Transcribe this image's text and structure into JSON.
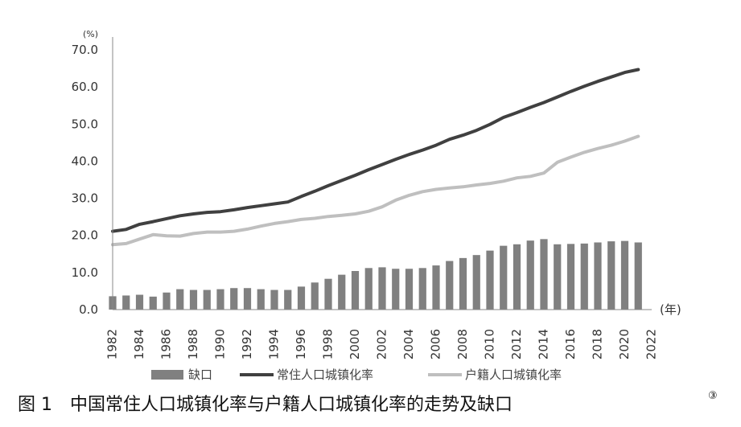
{
  "chart_data": {
    "type": "bar+line",
    "y_unit": "(%)",
    "x_unit": "(年)",
    "ylim": [
      0,
      70
    ],
    "yticks": [
      0,
      10,
      20,
      30,
      40,
      50,
      60,
      70
    ],
    "ytick_labels": [
      "0.0",
      "10.0",
      "20.0",
      "30.0",
      "40.0",
      "50.0",
      "60.0",
      "70.0"
    ],
    "xlim": [
      1982,
      2022
    ],
    "x_labels": [
      1982,
      1984,
      1986,
      1988,
      1990,
      1992,
      1994,
      1996,
      1998,
      2000,
      2002,
      2004,
      2006,
      2008,
      2010,
      2012,
      2014,
      2016,
      2018,
      2020,
      2022
    ],
    "x": [
      1982,
      1983,
      1984,
      1985,
      1986,
      1987,
      1988,
      1989,
      1990,
      1991,
      1992,
      1993,
      1994,
      1995,
      1996,
      1997,
      1998,
      1999,
      2000,
      2001,
      2002,
      2003,
      2004,
      2005,
      2006,
      2007,
      2008,
      2009,
      2010,
      2011,
      2012,
      2013,
      2014,
      2015,
      2016,
      2017,
      2018,
      2019,
      2020,
      2021
    ],
    "series": [
      {
        "name": "缺口",
        "kind": "bar",
        "color": "#808080",
        "values": [
          3.6,
          3.8,
          4.0,
          3.5,
          4.6,
          5.5,
          5.3,
          5.3,
          5.5,
          5.8,
          5.8,
          5.5,
          5.3,
          5.3,
          6.2,
          7.3,
          8.3,
          9.4,
          10.4,
          11.2,
          11.4,
          11.0,
          11.0,
          11.2,
          11.9,
          13.1,
          13.9,
          14.7,
          15.9,
          17.2,
          17.6,
          18.6,
          19.0,
          17.6,
          17.7,
          17.8,
          18.1,
          18.4,
          18.5,
          18.1
        ]
      },
      {
        "name": "常住人口城镇化率",
        "kind": "line",
        "color": "#404040",
        "values": [
          21.1,
          21.6,
          23.0,
          23.7,
          24.5,
          25.3,
          25.8,
          26.2,
          26.4,
          26.9,
          27.5,
          28.0,
          28.5,
          29.0,
          30.5,
          31.9,
          33.4,
          34.8,
          36.2,
          37.7,
          39.1,
          40.5,
          41.8,
          43.0,
          44.3,
          45.9,
          47.0,
          48.3,
          49.9,
          51.8,
          53.1,
          54.5,
          55.8,
          57.3,
          58.8,
          60.2,
          61.5,
          62.7,
          63.9,
          64.7
        ]
      },
      {
        "name": "户籍人口城镇化率",
        "kind": "line",
        "color": "#bfbfbf",
        "values": [
          17.5,
          17.8,
          19.0,
          20.2,
          19.9,
          19.8,
          20.5,
          20.9,
          20.9,
          21.1,
          21.7,
          22.5,
          23.2,
          23.7,
          24.3,
          24.6,
          25.1,
          25.4,
          25.8,
          26.5,
          27.7,
          29.5,
          30.8,
          31.8,
          32.4,
          32.8,
          33.1,
          33.6,
          34.0,
          34.6,
          35.5,
          35.9,
          36.8,
          39.7,
          41.1,
          42.4,
          43.4,
          44.3,
          45.4,
          46.7
        ]
      }
    ],
    "grid": false,
    "legend_position": "bottom"
  },
  "caption": {
    "text": "图 1　中国常住人口城镇化率与户籍人口城镇化率的走势及缺口",
    "superscript": "③"
  }
}
